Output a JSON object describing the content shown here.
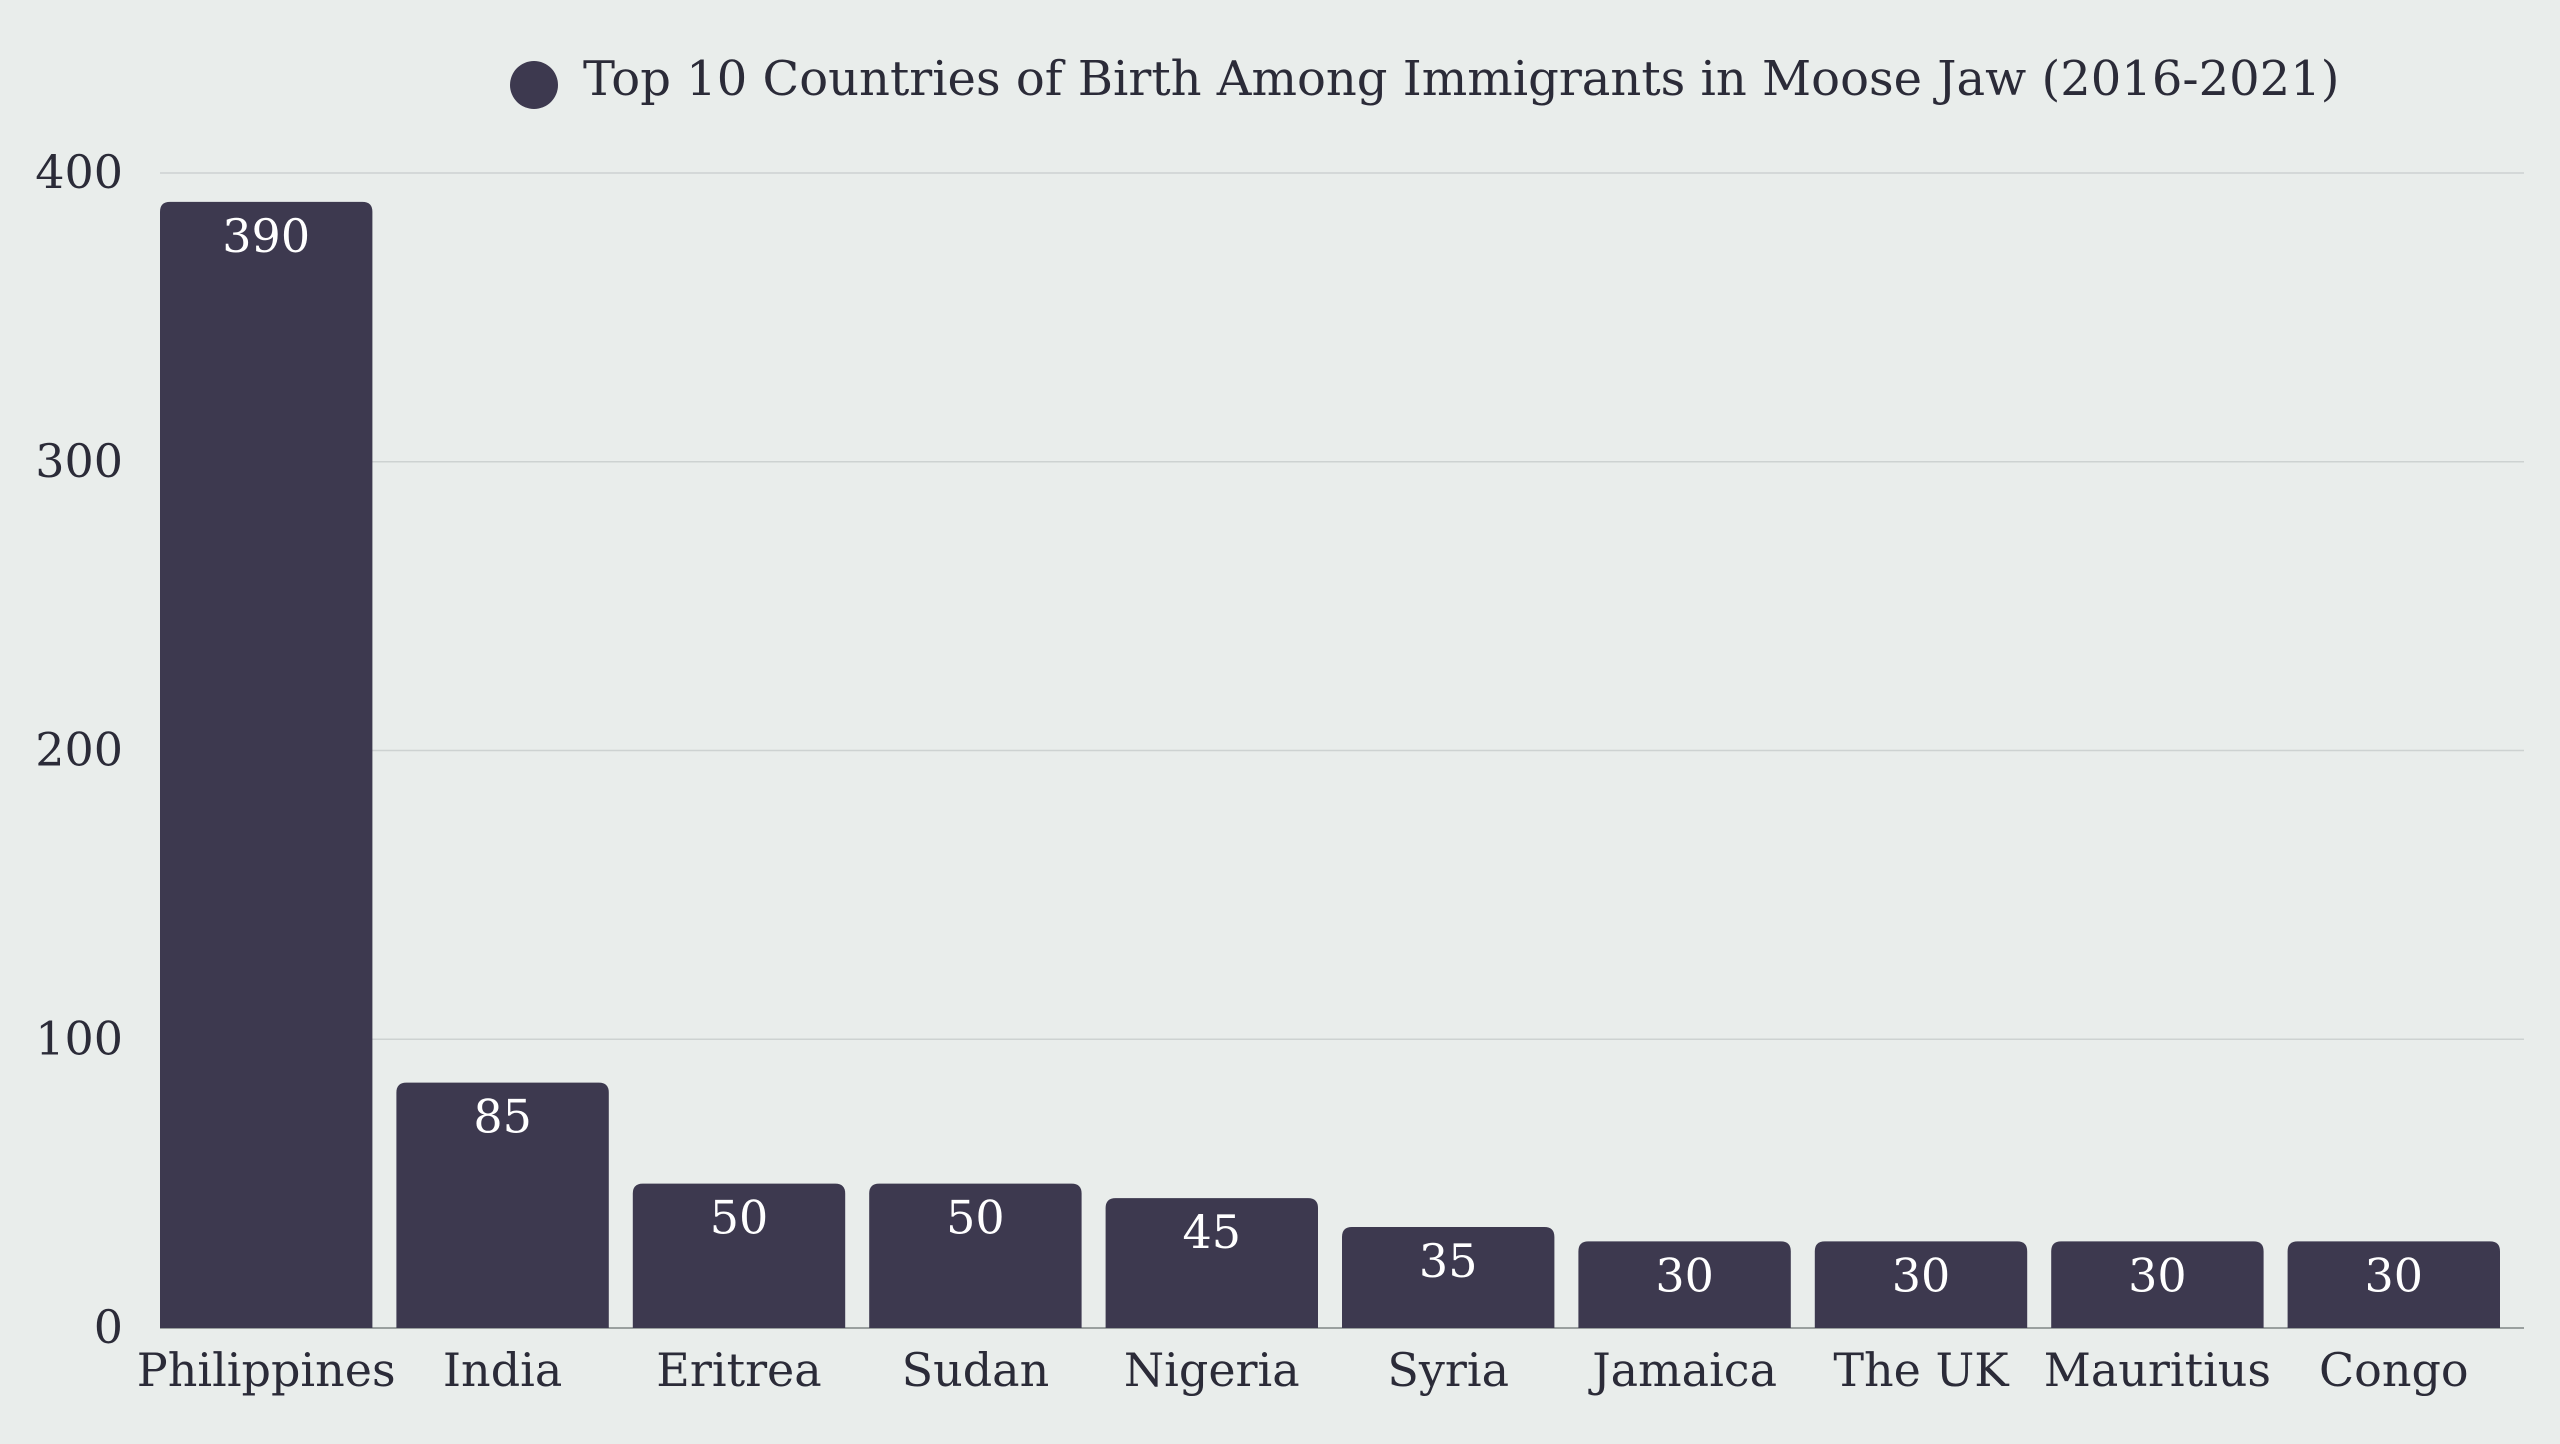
{
  "chart_data": {
    "type": "bar",
    "legend": {
      "label": "Top 10 Countries of Birth Among Immigrants in Moose Jaw (2016-2021)",
      "placement": "top-center"
    },
    "categories": [
      "Philippines",
      "India",
      "Eritrea",
      "Sudan",
      "Nigeria",
      "Syria",
      "Jamaica",
      "The UK",
      "Mauritius",
      "Congo"
    ],
    "series": [
      {
        "name": "Top 10 Countries of Birth Among Immigrants in Moose Jaw (2016-2021)",
        "values": [
          390,
          85,
          50,
          50,
          45,
          35,
          30,
          30,
          30,
          30
        ]
      }
    ],
    "data_labels": [
      "390",
      "85",
      "50",
      "50",
      "45",
      "35",
      "30",
      "30",
      "30",
      "30"
    ],
    "y_ticks": [
      0,
      100,
      200,
      300,
      400
    ],
    "y_tick_labels": [
      "0",
      "100",
      "200",
      "300",
      "400"
    ],
    "ylim": [
      0,
      400
    ],
    "grid": true,
    "xlabel": "",
    "ylabel": "",
    "colors": {
      "bar": "#3d394f",
      "background": "#e9edeb",
      "grid": "#cdd2d1",
      "text": "#2b2b38",
      "data_label": "#ffffff"
    }
  }
}
